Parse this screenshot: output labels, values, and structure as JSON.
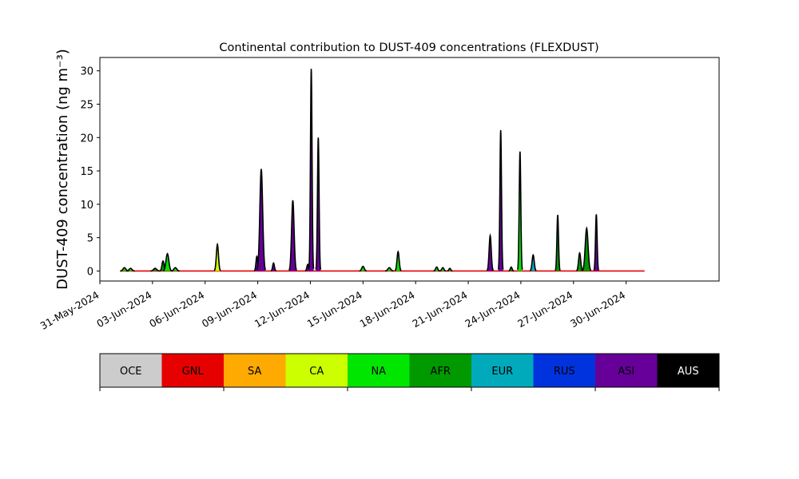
{
  "chart_data": {
    "type": "area",
    "title": "Continental contribution to DUST-409 concentrations (FLEXDUST)",
    "ylabel": "DUST-409 concentration (ng m⁻³)",
    "xlabel": "",
    "ylim": [
      -1.5,
      32
    ],
    "yticks": [
      0,
      5,
      10,
      15,
      20,
      25,
      30
    ],
    "x_range_days": [
      0,
      35.3
    ],
    "x_ticks": [
      {
        "day": 0,
        "label": "31-May-2024"
      },
      {
        "day": 3,
        "label": "03-Jun-2024"
      },
      {
        "day": 6,
        "label": "06-Jun-2024"
      },
      {
        "day": 9,
        "label": "09-Jun-2024"
      },
      {
        "day": 12,
        "label": "12-Jun-2024"
      },
      {
        "day": 15,
        "label": "15-Jun-2024"
      },
      {
        "day": 18,
        "label": "18-Jun-2024"
      },
      {
        "day": 21,
        "label": "21-Jun-2024"
      },
      {
        "day": 24,
        "label": "24-Jun-2024"
      },
      {
        "day": 27,
        "label": "27-Jun-2024"
      },
      {
        "day": 30,
        "label": "30-Jun-2024"
      }
    ],
    "x_data_range_days": [
      1.15,
      31.05
    ],
    "legend_placement": "bottom-colorbar",
    "grid": false,
    "sources": [
      {
        "name": "OCE",
        "color": "#cccccc",
        "text_color": "#000000"
      },
      {
        "name": "GNL",
        "color": "#e60000",
        "text_color": "#000000"
      },
      {
        "name": "SA",
        "color": "#ffaa00",
        "text_color": "#000000"
      },
      {
        "name": "CA",
        "color": "#ccff00",
        "text_color": "#000000"
      },
      {
        "name": "NA",
        "color": "#00e600",
        "text_color": "#000000"
      },
      {
        "name": "AFR",
        "color": "#009900",
        "text_color": "#000000"
      },
      {
        "name": "EUR",
        "color": "#00aabb",
        "text_color": "#000000"
      },
      {
        "name": "RUS",
        "color": "#0033dd",
        "text_color": "#000000"
      },
      {
        "name": "ASI",
        "color": "#660099",
        "text_color": "#000000"
      },
      {
        "name": "AUS",
        "color": "#000000",
        "text_color": "#ffffff"
      }
    ],
    "events": [
      {
        "day": 1.4,
        "width": 0.08,
        "total": 0.5,
        "source": "NA"
      },
      {
        "day": 1.75,
        "width": 0.08,
        "total": 0.4,
        "source": "NA"
      },
      {
        "day": 3.15,
        "width": 0.09,
        "total": 0.4,
        "source": "AFR"
      },
      {
        "day": 3.6,
        "width": 0.06,
        "total": 1.5,
        "source": "AFR"
      },
      {
        "day": 3.85,
        "width": 0.08,
        "total": 2.6,
        "source": "NA"
      },
      {
        "day": 4.3,
        "width": 0.08,
        "total": 0.5,
        "source": "NA"
      },
      {
        "day": 6.7,
        "width": 0.06,
        "total": 4.0,
        "source": "CA"
      },
      {
        "day": 8.95,
        "width": 0.05,
        "total": 2.2,
        "source": "ASI"
      },
      {
        "day": 9.2,
        "width": 0.08,
        "total": 15.3,
        "source": "ASI"
      },
      {
        "day": 9.9,
        "width": 0.05,
        "total": 1.2,
        "source": "ASI"
      },
      {
        "day": 11.0,
        "width": 0.07,
        "total": 10.6,
        "source": "ASI"
      },
      {
        "day": 11.85,
        "width": 0.05,
        "total": 1.0,
        "source": "ASI"
      },
      {
        "day": 12.05,
        "width": 0.045,
        "total": 30.3,
        "source": "ASI"
      },
      {
        "day": 12.45,
        "width": 0.045,
        "total": 20.0,
        "source": "ASI"
      },
      {
        "day": 15.0,
        "width": 0.07,
        "total": 0.7,
        "source": "NA"
      },
      {
        "day": 16.5,
        "width": 0.08,
        "total": 0.5,
        "source": "NA"
      },
      {
        "day": 17.0,
        "width": 0.06,
        "total": 2.9,
        "source": "NA"
      },
      {
        "day": 19.2,
        "width": 0.06,
        "total": 0.6,
        "source": "NA"
      },
      {
        "day": 19.55,
        "width": 0.06,
        "total": 0.5,
        "source": "NA"
      },
      {
        "day": 19.95,
        "width": 0.05,
        "total": 0.4,
        "source": "NA"
      },
      {
        "day": 22.25,
        "width": 0.06,
        "total": 5.3,
        "source": "ASI"
      },
      {
        "day": 22.85,
        "width": 0.045,
        "total": 21.1,
        "source": "ASI"
      },
      {
        "day": 23.45,
        "width": 0.05,
        "total": 0.6,
        "source": "AFR"
      },
      {
        "day": 23.95,
        "width": 0.045,
        "total": 17.9,
        "source": "NA"
      },
      {
        "day": 24.7,
        "width": 0.06,
        "total": 2.4,
        "source": "EUR"
      },
      {
        "day": 26.1,
        "width": 0.045,
        "total": 8.4,
        "source": "AFR"
      },
      {
        "day": 27.35,
        "width": 0.06,
        "total": 2.7,
        "source": "AFR"
      },
      {
        "day": 27.75,
        "width": 0.08,
        "total": 6.4,
        "source": "AFR"
      },
      {
        "day": 28.3,
        "width": 0.045,
        "total": 8.5,
        "source": "ASI"
      }
    ]
  }
}
